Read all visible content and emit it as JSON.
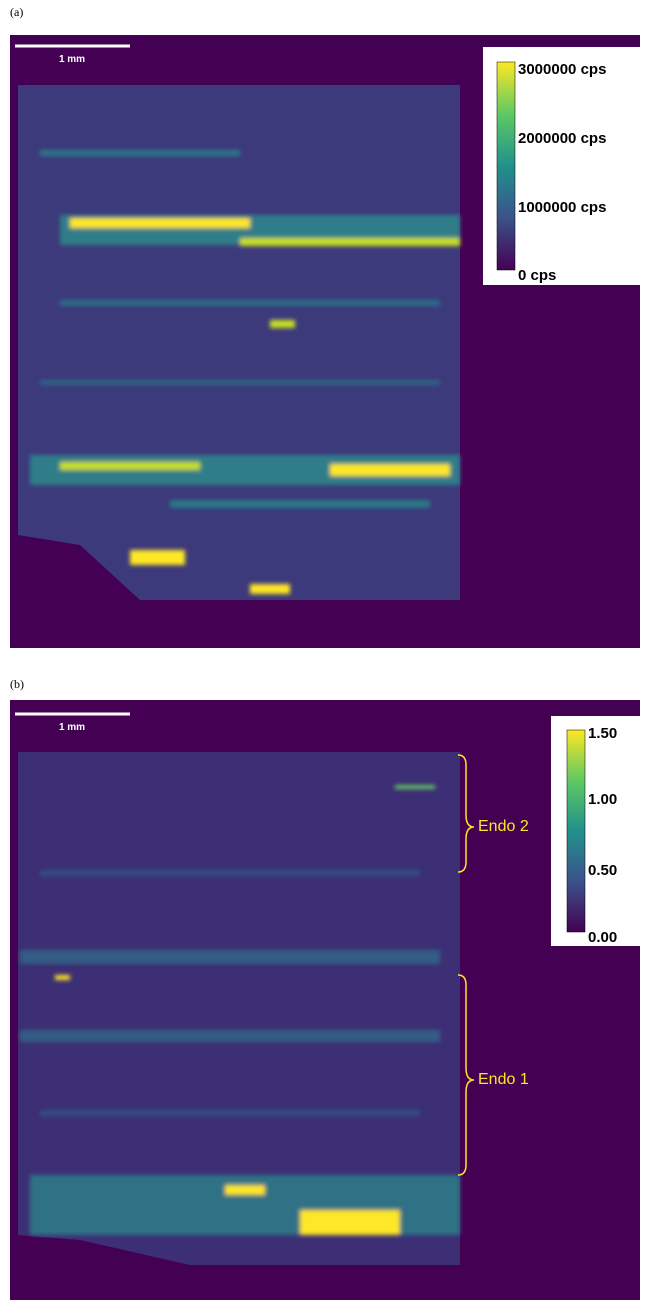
{
  "panels": [
    {
      "label": "(a)",
      "scale_bar": "1 mm",
      "colorbar_ticks": [
        "3000000 cps",
        "2000000 cps",
        "1000000 cps",
        "0 cps"
      ]
    },
    {
      "label": "(b)",
      "scale_bar": "1 mm",
      "colorbar_ticks": [
        "1.50",
        "1.00",
        "0.50",
        "0.00"
      ],
      "annotations": [
        "Endo 2",
        "Endo 1"
      ]
    }
  ]
}
